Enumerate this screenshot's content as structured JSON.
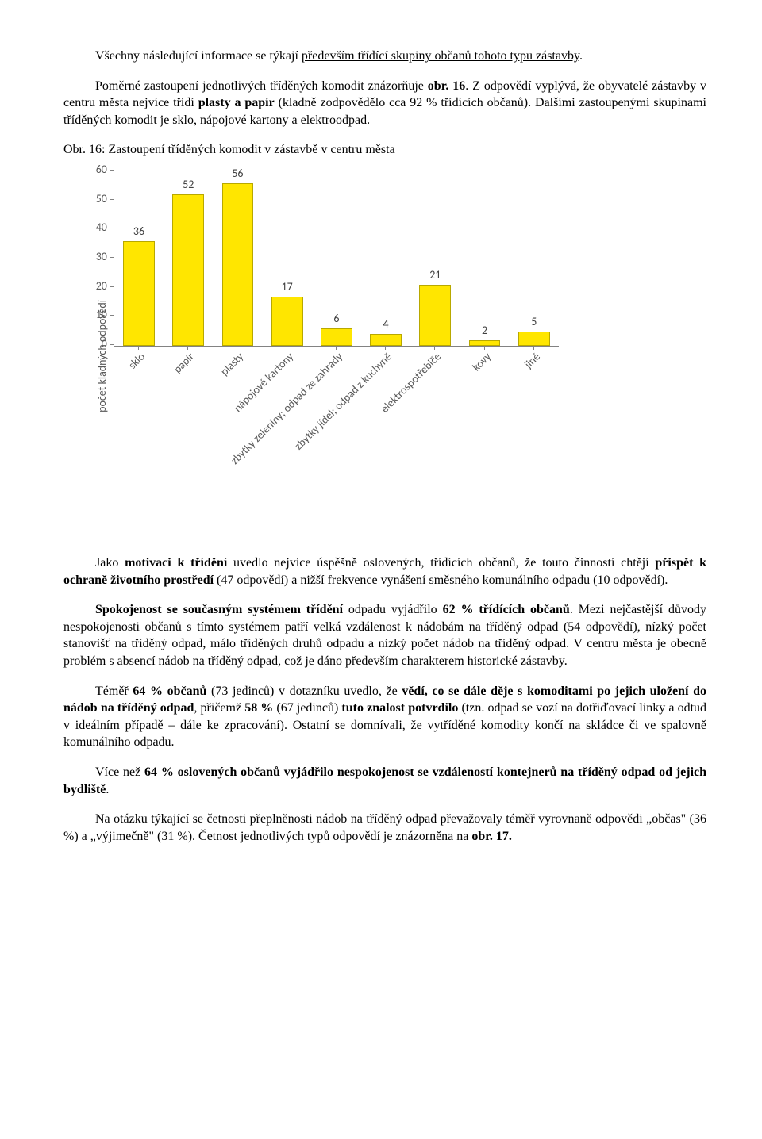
{
  "para1": {
    "lead": "Všechny následující informace se týkají ",
    "underlined": "především třídící skupiny občanů tohoto typu zástavby",
    "trail": "."
  },
  "para2": {
    "lead": "Poměrné zastoupení jednotlivých tříděných komodit znázorňuje ",
    "bold1": "obr. 16",
    "mid1": ". Z odpovědí vyplývá, že obyvatelé zástavby v centru města nejvíce třídí ",
    "bold2": "plasty a papír",
    "mid2": " (kladně zodpovědělo cca 92 % třídících občanů). Dalšími zastoupenými skupinami tříděných komodit je sklo, nápojové kartony a elektroodpad."
  },
  "chart": {
    "title": "Obr. 16: Zastoupení tříděných komodit v zástavbě v centru města",
    "y_label": "počet kladných odpovědí",
    "y_ticks": [
      0,
      10,
      20,
      30,
      40,
      50,
      60
    ],
    "y_max": 60,
    "bar_color": "#ffe600",
    "bar_border": "#b8a800",
    "categories": [
      "sklo",
      "papír",
      "plasty",
      "nápojové kartony",
      "zbytky zeleniny; odpad ze zahrady",
      "zbytky jídel; odpad z kuchyně",
      "elektrospotřebiče",
      "kovy",
      "jiné"
    ],
    "values": [
      36,
      52,
      56,
      17,
      6,
      4,
      21,
      2,
      5
    ]
  },
  "para3": {
    "lead": "Jako ",
    "b1": "motivaci k třídění",
    "mid1": " uvedlo nejvíce úspěšně oslovených, třídících občanů, že touto činností chtějí ",
    "b2": "přispět k ochraně životního prostředí",
    "trail": " (47 odpovědí) a nižší frekvence vynášení směsného komunálního odpadu (10 odpovědí)."
  },
  "para4": {
    "b1": "Spokojenost se současným systémem třídění",
    "mid1": " odpadu vyjádřilo ",
    "b2": "62 % třídících občanů",
    "trail": ". Mezi nejčastější důvody nespokojenosti občanů s tímto systémem patří velká vzdálenost k nádobám na tříděný odpad (54 odpovědí), nízký počet stanovišť na tříděný odpad, málo tříděných druhů odpadu a nízký počet nádob na tříděný odpad. V centru města je obecně problém s absencí nádob na tříděný odpad, což je dáno především charakterem historické zástavby."
  },
  "para5": {
    "lead": "Téměř ",
    "b1": "64 % občanů",
    "mid1": " (73 jedinců) v dotazníku uvedlo, že ",
    "b2": "vědí, co se dále děje s komoditami po jejich uložení do nádob na tříděný odpad",
    "mid2": ", přičemž ",
    "b3": "58 %",
    "mid3": " (67 jedinců) ",
    "b4": "tuto znalost potvrdilo",
    "trail": " (tzn. odpad se vozí na dotřiďovací linky a odtud v ideálním případě – dále ke zpracování). Ostatní se domnívali, že vytříděné komodity končí na skládce či ve spalovně komunálního odpadu."
  },
  "para6": {
    "lead": "Více než ",
    "b1": "64 % oslovených občanů vyjádřilo ",
    "u1": "ne",
    "b2": "spokojenost se vzdáleností kontejnerů na tříděný odpad od jejich bydliště",
    "trail": "."
  },
  "para7": {
    "lead": "Na otázku týkající se četnosti přeplněnosti nádob na tříděný odpad převažovaly téměř vyrovnaně odpovědi „občas\" (36 %) a „výjimečně\" (31 %). Četnost jednotlivých typů odpovědí je znázorněna na ",
    "b1": "obr. 17.",
    "trail": ""
  }
}
